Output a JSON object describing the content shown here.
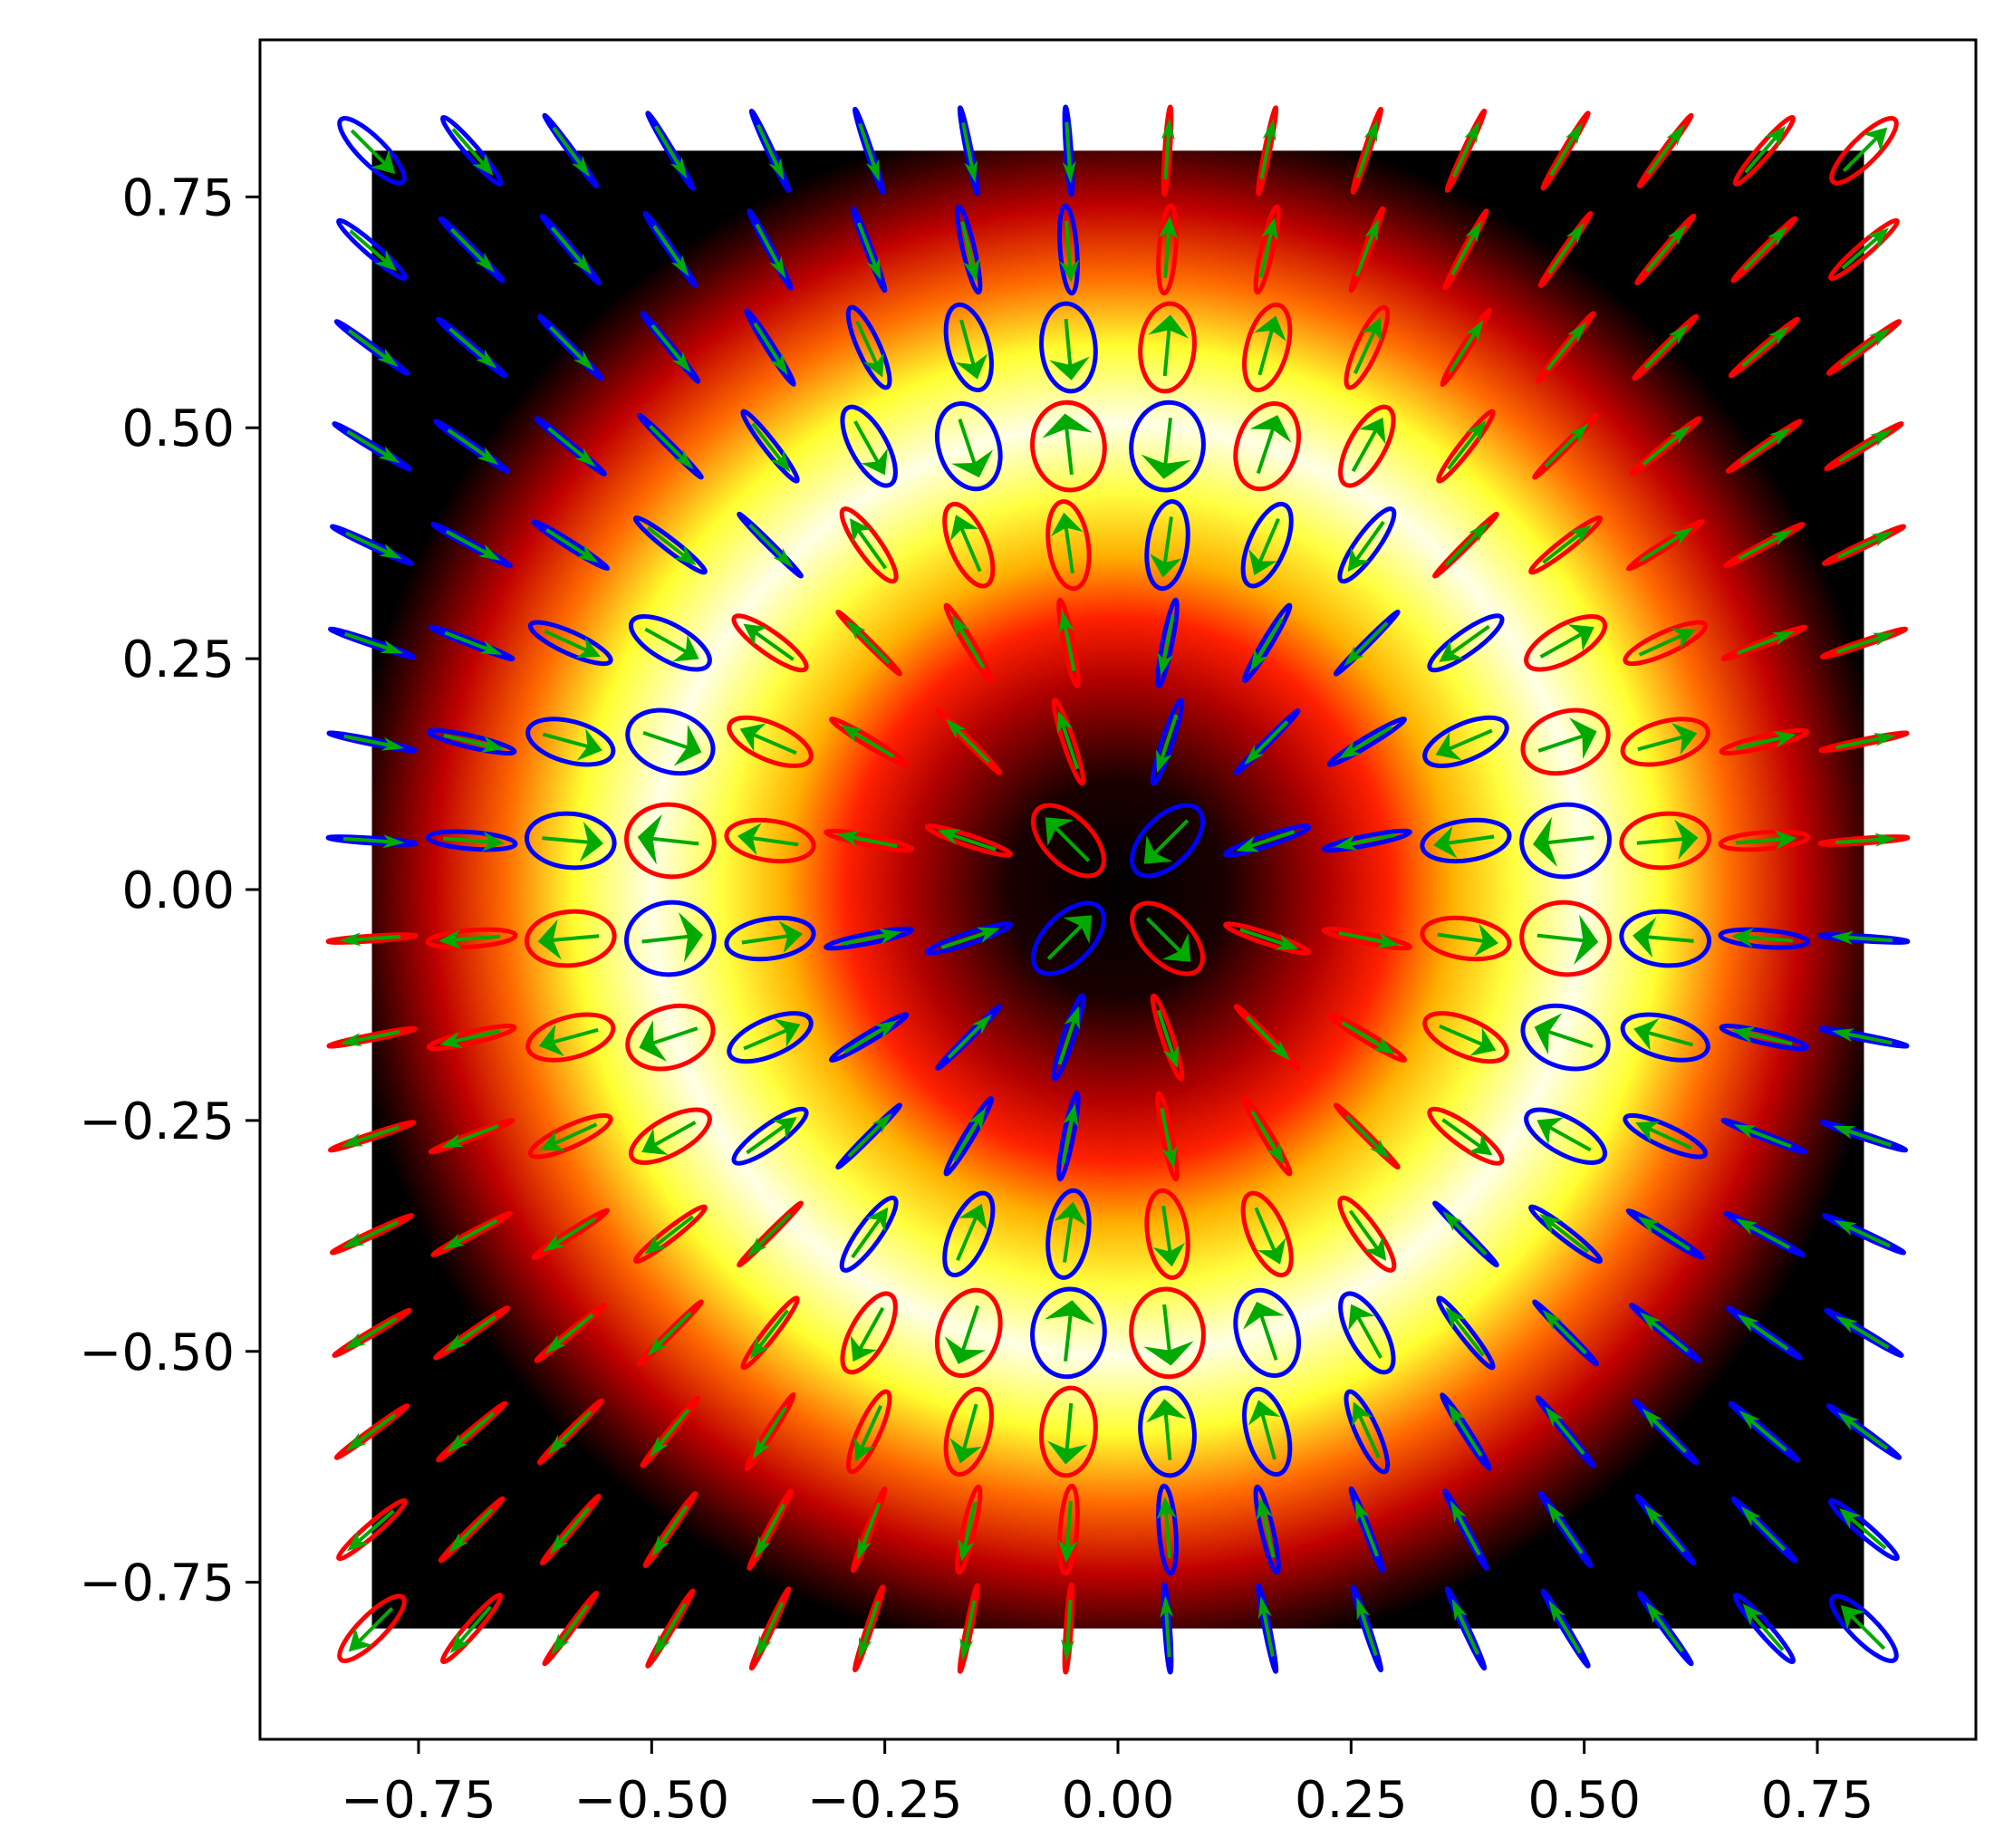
{
  "chart_data": {
    "type": "heatmap",
    "title": "",
    "xlabel": "",
    "ylabel": "",
    "xlim": [
      -0.92,
      0.92
    ],
    "ylim": [
      -0.92,
      0.92
    ],
    "grid": false,
    "legend": "none",
    "colormap": "hot",
    "image_extent": [
      -0.8,
      0.8,
      -0.8,
      0.8
    ],
    "intensity_peak_radius": 0.5,
    "x_ticks": [
      -0.75,
      -0.5,
      -0.25,
      0.0,
      0.25,
      0.5,
      0.75
    ],
    "y_ticks": [
      -0.75,
      -0.5,
      -0.25,
      0.0,
      0.25,
      0.5,
      0.75
    ],
    "x_tick_labels": [
      "−0.75",
      "−0.50",
      "−0.25",
      "0.00",
      "0.25",
      "0.50",
      "0.75"
    ],
    "y_tick_labels": [
      "−0.75",
      "−0.50",
      "−0.25",
      "0.00",
      "0.25",
      "0.50",
      "0.75"
    ],
    "glyph_grid": {
      "x": [
        -0.8,
        -0.693,
        -0.587,
        -0.48,
        -0.373,
        -0.267,
        -0.16,
        -0.053,
        0.053,
        0.16,
        0.267,
        0.373,
        0.48,
        0.587,
        0.693,
        0.8
      ],
      "y": [
        -0.8,
        -0.693,
        -0.587,
        -0.48,
        -0.373,
        -0.267,
        -0.16,
        -0.053,
        0.053,
        0.16,
        0.267,
        0.373,
        0.48,
        0.587,
        0.693,
        0.8
      ]
    },
    "colors": {
      "ellipse_right_handed": "#ff0000",
      "ellipse_left_handed": "#0000ff",
      "arrow": "#00aa00",
      "axes": "#000000"
    }
  }
}
